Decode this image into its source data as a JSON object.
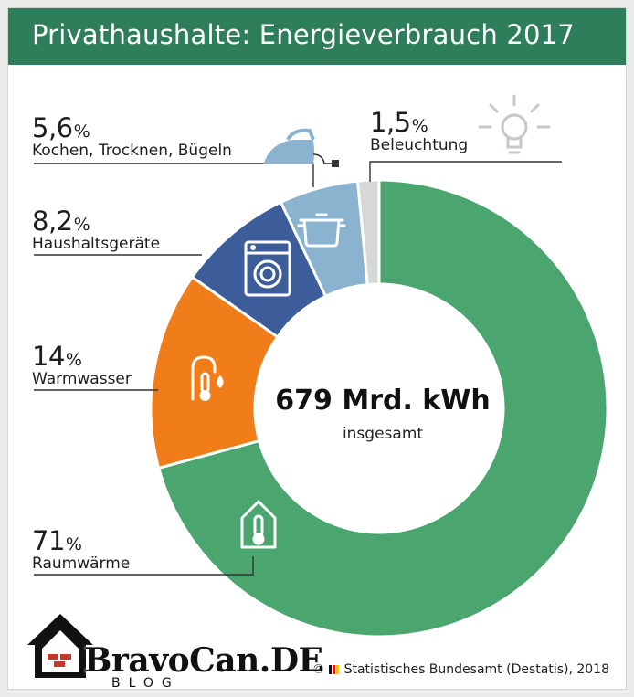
{
  "header": {
    "title": "Privathaushalte: Energieverbrauch 2017"
  },
  "chart_data": {
    "type": "pie",
    "title": "Privathaushalte: Energieverbrauch 2017",
    "unit": "%",
    "total": {
      "value": "679 Mrd. kWh",
      "label": "insgesamt"
    },
    "slices": [
      {
        "label": "Raumwärme",
        "value": 71,
        "display": "71",
        "color": "#4aa56f",
        "icon": "house-thermometer-icon"
      },
      {
        "label": "Warmwasser",
        "value": 14,
        "display": "14",
        "color": "#f07d1a",
        "icon": "faucet-thermometer-icon"
      },
      {
        "label": "Haushaltsgeräte",
        "value": 8.2,
        "display": "8,2",
        "color": "#3d5d9a",
        "icon": "washing-machine-icon"
      },
      {
        "label": "Kochen, Trocknen, Bügeln",
        "value": 5.6,
        "display": "5,6",
        "color": "#8ab3d0",
        "icon": "cooking-pot-icon"
      },
      {
        "label": "Beleuchtung",
        "value": 1.5,
        "display": "1,5",
        "color": "#d6d8d8",
        "icon": "light-bulb-icon"
      }
    ]
  },
  "source": {
    "text": "Statistisches Bundesamt (Destatis), 2018",
    "copyright": "©"
  },
  "watermark": {
    "brand": "BravoCan.DE",
    "sub": "BLOG"
  }
}
